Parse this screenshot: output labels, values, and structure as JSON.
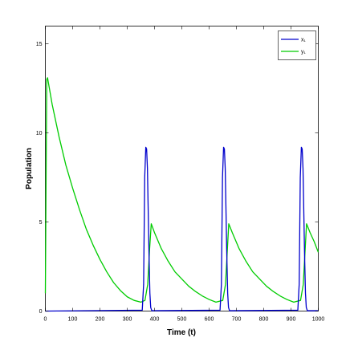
{
  "chart_data": {
    "type": "line",
    "title": "",
    "xlabel": "Time (t)",
    "ylabel": "Population",
    "xlim": [
      0,
      1000
    ],
    "ylim": [
      0,
      16
    ],
    "xticks": [
      0,
      100,
      200,
      300,
      400,
      500,
      600,
      700,
      800,
      900,
      1000
    ],
    "yticks": [
      0,
      5,
      10,
      15
    ],
    "grid": false,
    "legend_position": "top-right",
    "series": [
      {
        "name": "x₁",
        "color": "#0000cc",
        "points": [
          [
            0,
            0.0
          ],
          [
            2,
            0.0
          ],
          [
            355,
            0.05
          ],
          [
            360,
            1.5
          ],
          [
            364,
            7.5
          ],
          [
            368,
            9.2
          ],
          [
            371,
            9.1
          ],
          [
            374,
            8.0
          ],
          [
            377,
            5.5
          ],
          [
            380,
            3.0
          ],
          [
            383,
            1.0
          ],
          [
            386,
            0.2
          ],
          [
            390,
            0.02
          ],
          [
            640,
            0.05
          ],
          [
            645,
            1.5
          ],
          [
            649,
            7.5
          ],
          [
            653,
            9.2
          ],
          [
            656,
            9.1
          ],
          [
            659,
            8.0
          ],
          [
            662,
            5.5
          ],
          [
            665,
            3.0
          ],
          [
            668,
            1.0
          ],
          [
            671,
            0.2
          ],
          [
            675,
            0.02
          ],
          [
            925,
            0.05
          ],
          [
            930,
            1.5
          ],
          [
            934,
            7.5
          ],
          [
            938,
            9.2
          ],
          [
            941,
            9.1
          ],
          [
            944,
            8.0
          ],
          [
            947,
            5.5
          ],
          [
            950,
            3.0
          ],
          [
            953,
            1.0
          ],
          [
            956,
            0.2
          ],
          [
            960,
            0.02
          ],
          [
            1000,
            0.02
          ]
        ]
      },
      {
        "name": "y₁",
        "color": "#00cc00",
        "points": [
          [
            0,
            1.0
          ],
          [
            5,
            13.0
          ],
          [
            8,
            13.1
          ],
          [
            25,
            11.6
          ],
          [
            50,
            9.8
          ],
          [
            75,
            8.2
          ],
          [
            100,
            6.9
          ],
          [
            125,
            5.7
          ],
          [
            150,
            4.6
          ],
          [
            175,
            3.7
          ],
          [
            200,
            2.9
          ],
          [
            225,
            2.2
          ],
          [
            250,
            1.6
          ],
          [
            275,
            1.15
          ],
          [
            300,
            0.8
          ],
          [
            325,
            0.6
          ],
          [
            350,
            0.5
          ],
          [
            365,
            0.6
          ],
          [
            375,
            1.5
          ],
          [
            382,
            3.5
          ],
          [
            388,
            4.9
          ],
          [
            400,
            4.4
          ],
          [
            425,
            3.5
          ],
          [
            450,
            2.8
          ],
          [
            475,
            2.2
          ],
          [
            500,
            1.8
          ],
          [
            525,
            1.4
          ],
          [
            550,
            1.1
          ],
          [
            575,
            0.85
          ],
          [
            600,
            0.65
          ],
          [
            625,
            0.5
          ],
          [
            650,
            0.6
          ],
          [
            660,
            1.5
          ],
          [
            667,
            3.5
          ],
          [
            672,
            4.9
          ],
          [
            685,
            4.4
          ],
          [
            710,
            3.5
          ],
          [
            735,
            2.8
          ],
          [
            760,
            2.2
          ],
          [
            785,
            1.8
          ],
          [
            810,
            1.4
          ],
          [
            835,
            1.1
          ],
          [
            860,
            0.85
          ],
          [
            885,
            0.65
          ],
          [
            910,
            0.5
          ],
          [
            935,
            0.6
          ],
          [
            945,
            1.5
          ],
          [
            952,
            3.5
          ],
          [
            957,
            4.9
          ],
          [
            970,
            4.4
          ],
          [
            985,
            3.9
          ],
          [
            1000,
            3.3
          ]
        ]
      }
    ]
  }
}
